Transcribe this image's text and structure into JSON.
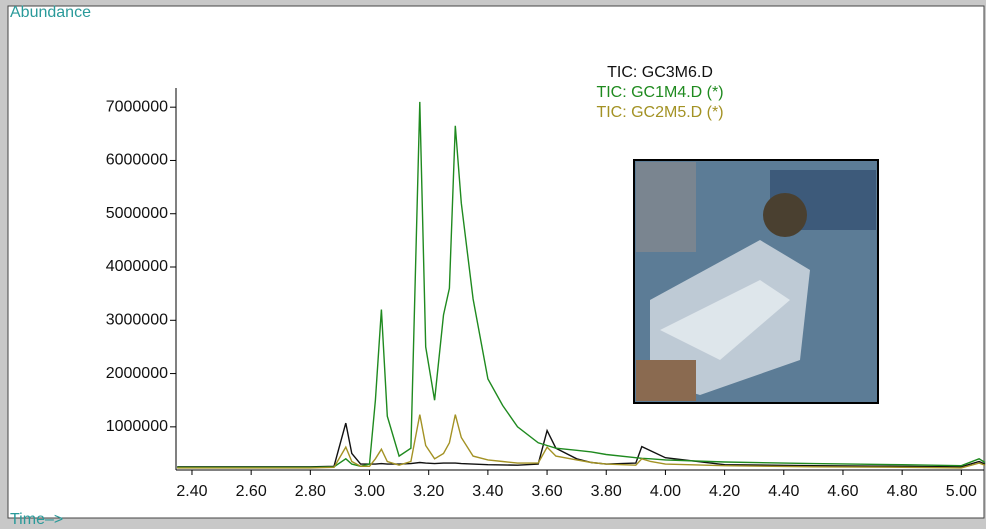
{
  "chart_data": {
    "type": "line",
    "y_label": "Abundance",
    "x_label": "Time–>",
    "x": [
      2.35,
      2.8,
      2.88,
      2.92,
      2.94,
      2.97,
      3.0,
      3.02,
      3.04,
      3.06,
      3.1,
      3.14,
      3.17,
      3.19,
      3.22,
      3.25,
      3.27,
      3.29,
      3.31,
      3.35,
      3.4,
      3.45,
      3.5,
      3.57,
      3.6,
      3.63,
      3.7,
      3.75,
      3.8,
      3.9,
      3.92,
      3.95,
      4.0,
      4.2,
      4.5,
      4.8,
      5.0,
      5.06,
      5.08
    ],
    "series": [
      {
        "name": "TIC: GC3M6.D",
        "color": "#111111",
        "values": [
          250000,
          250000,
          260000,
          1070000,
          500000,
          300000,
          300000,
          300000,
          310000,
          300000,
          300000,
          310000,
          330000,
          320000,
          310000,
          320000,
          320000,
          320000,
          310000,
          300000,
          290000,
          285000,
          280000,
          300000,
          930000,
          600000,
          400000,
          330000,
          300000,
          320000,
          630000,
          550000,
          420000,
          290000,
          270000,
          260000,
          250000,
          350000,
          300000
        ]
      },
      {
        "name": "TIC: GC1M4.D (*)",
        "color": "#1f8a1f",
        "values": [
          240000,
          240000,
          250000,
          400000,
          300000,
          260000,
          300000,
          1500000,
          3200000,
          1200000,
          450000,
          600000,
          7100000,
          2500000,
          1500000,
          3100000,
          3600000,
          6650000,
          5200000,
          3400000,
          1900000,
          1400000,
          1000000,
          700000,
          650000,
          600000,
          560000,
          530000,
          480000,
          420000,
          410000,
          400000,
          380000,
          340000,
          310000,
          290000,
          270000,
          400000,
          330000
        ]
      },
      {
        "name": "TIC: GC2M5.D (*)",
        "color": "#a39224",
        "values": [
          230000,
          230000,
          240000,
          620000,
          350000,
          260000,
          260000,
          400000,
          580000,
          350000,
          280000,
          350000,
          1230000,
          650000,
          400000,
          500000,
          700000,
          1230000,
          800000,
          450000,
          380000,
          350000,
          320000,
          320000,
          620000,
          450000,
          380000,
          330000,
          300000,
          280000,
          400000,
          350000,
          300000,
          270000,
          250000,
          240000,
          230000,
          320000,
          280000
        ]
      }
    ],
    "xlim": [
      2.346,
      5.08
    ],
    "ylim": [
      190000,
      7360000
    ],
    "xticks": [
      {
        "value": 2.4,
        "label": "2.40"
      },
      {
        "value": 2.6,
        "label": "2.60"
      },
      {
        "value": 2.8,
        "label": "2.80"
      },
      {
        "value": 3.0,
        "label": "3.00"
      },
      {
        "value": 3.2,
        "label": "3.20"
      },
      {
        "value": 3.4,
        "label": "3.40"
      },
      {
        "value": 3.6,
        "label": "3.60"
      },
      {
        "value": 3.8,
        "label": "3.80"
      },
      {
        "value": 4.0,
        "label": "4.00"
      },
      {
        "value": 4.2,
        "label": "4.20"
      },
      {
        "value": 4.4,
        "label": "4.40"
      },
      {
        "value": 4.6,
        "label": "4.60"
      },
      {
        "value": 4.8,
        "label": "4.80"
      },
      {
        "value": 5.0,
        "label": "5.00"
      }
    ],
    "yticks": [
      1000000,
      2000000,
      3000000,
      4000000,
      5000000,
      6000000,
      7000000
    ]
  }
}
